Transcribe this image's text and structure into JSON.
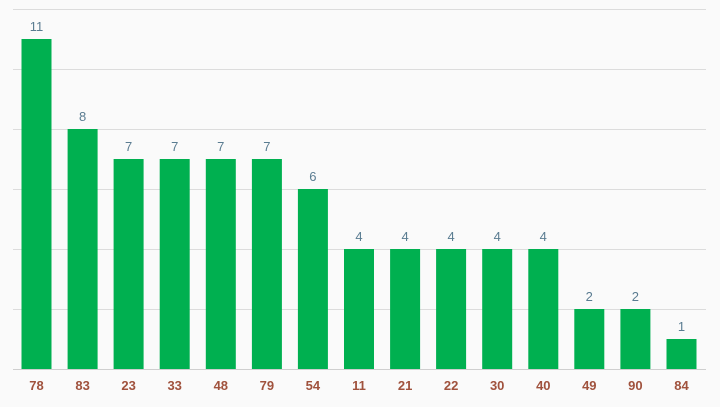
{
  "chart_data": {
    "type": "bar",
    "categories": [
      "78",
      "83",
      "23",
      "33",
      "48",
      "79",
      "54",
      "11",
      "21",
      "22",
      "30",
      "40",
      "49",
      "90",
      "84"
    ],
    "values": [
      11,
      8,
      7,
      7,
      7,
      7,
      6,
      4,
      4,
      4,
      4,
      4,
      2,
      2,
      1
    ],
    "title": "",
    "xlabel": "",
    "ylabel": "",
    "ylim": [
      0,
      12
    ],
    "grid": true,
    "gridlines": [
      0,
      2,
      4,
      6,
      8,
      10,
      12
    ],
    "data_labels": true,
    "colors": {
      "bar": "#00b050",
      "value_label": "#5a7c91",
      "category_label": "#a0523d",
      "grid": "#dcdcdc"
    }
  }
}
